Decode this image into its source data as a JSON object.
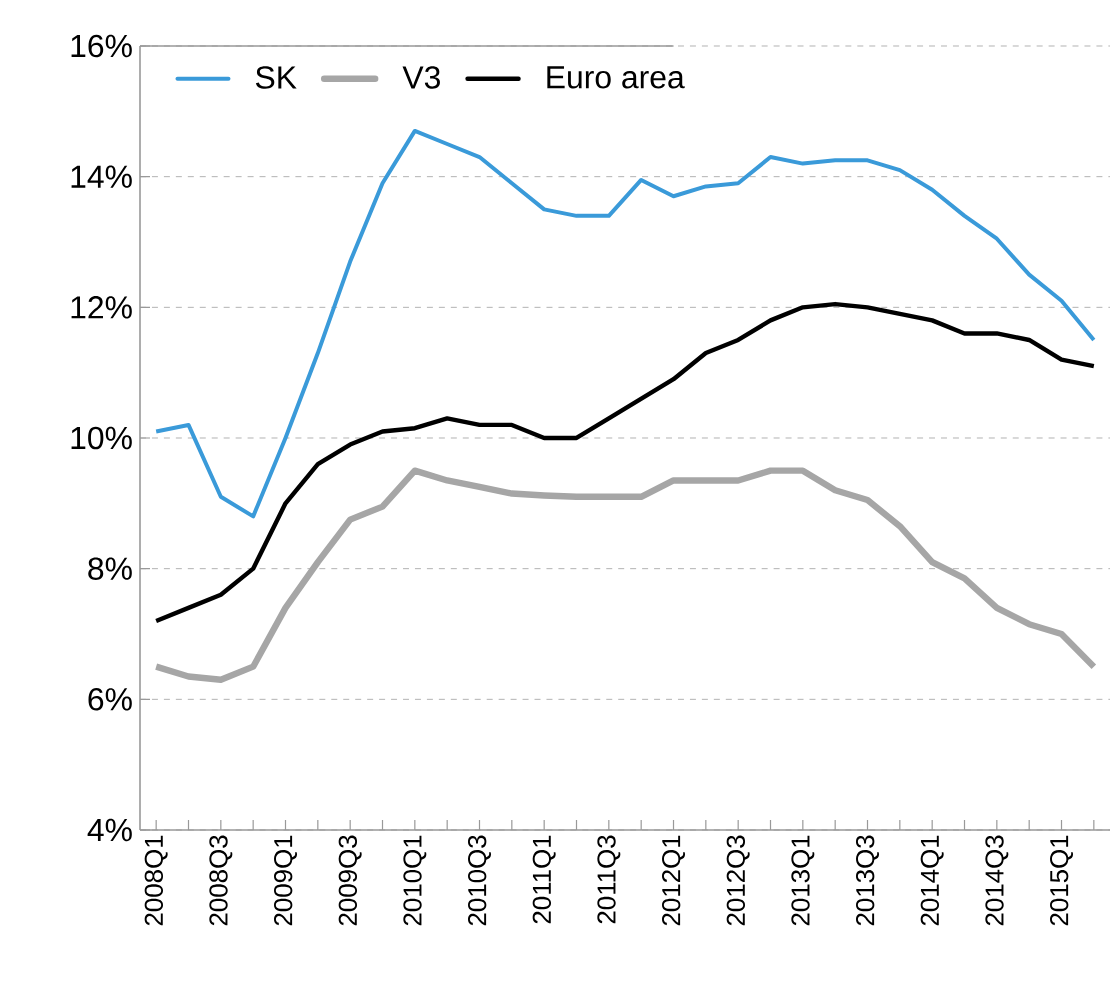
{
  "chart_data": {
    "type": "line",
    "categories": [
      "2008Q1",
      null,
      "2008Q3",
      null,
      "2009Q1",
      null,
      "2009Q3",
      null,
      "2010Q1",
      null,
      "2010Q3",
      null,
      "2011Q1",
      null,
      "2011Q3",
      null,
      "2012Q1",
      null,
      "2012Q3",
      null,
      "2013Q1",
      null,
      "2013Q3",
      null,
      "2014Q1",
      null,
      "2014Q3",
      null,
      "2015Q1",
      null
    ],
    "series": [
      {
        "name": "SK",
        "color": "#3a9ad9",
        "values": [
          10.1,
          10.2,
          9.1,
          8.8,
          10.0,
          11.3,
          12.7,
          13.9,
          14.7,
          14.5,
          14.3,
          13.9,
          13.5,
          13.4,
          13.4,
          13.95,
          13.7,
          13.85,
          13.9,
          14.3,
          14.2,
          14.25,
          14.25,
          14.1,
          13.8,
          13.4,
          13.05,
          12.5,
          12.1,
          11.5
        ]
      },
      {
        "name": "V3",
        "color": "#a6a6a6",
        "values": [
          6.5,
          6.35,
          6.3,
          6.5,
          7.4,
          8.1,
          8.75,
          8.95,
          9.5,
          9.35,
          9.25,
          9.15,
          9.12,
          9.1,
          9.1,
          9.1,
          9.35,
          9.35,
          9.35,
          9.5,
          9.5,
          9.2,
          9.05,
          8.65,
          8.1,
          7.85,
          7.4,
          7.15,
          7.0,
          6.5
        ]
      },
      {
        "name": "Euro area",
        "color": "#000000",
        "values": [
          7.2,
          7.4,
          7.6,
          8.0,
          9.0,
          9.6,
          9.9,
          10.1,
          10.15,
          10.3,
          10.2,
          10.2,
          10.0,
          10.0,
          10.3,
          10.6,
          10.9,
          11.3,
          11.5,
          11.8,
          12.0,
          12.05,
          12.0,
          11.9,
          11.8,
          11.6,
          11.6,
          11.5,
          11.2,
          11.1
        ]
      }
    ],
    "ylim": [
      4,
      16
    ],
    "yticks": [
      {
        "value": 4,
        "label": "4%"
      },
      {
        "value": 6,
        "label": "6%"
      },
      {
        "value": 8,
        "label": "8%"
      },
      {
        "value": 10,
        "label": "10%"
      },
      {
        "value": 12,
        "label": "12%"
      },
      {
        "value": 14,
        "label": "14%"
      },
      {
        "value": 16,
        "label": "16%"
      }
    ],
    "grid": "y",
    "legend": "top",
    "marker": "none",
    "line_style": "solid"
  }
}
